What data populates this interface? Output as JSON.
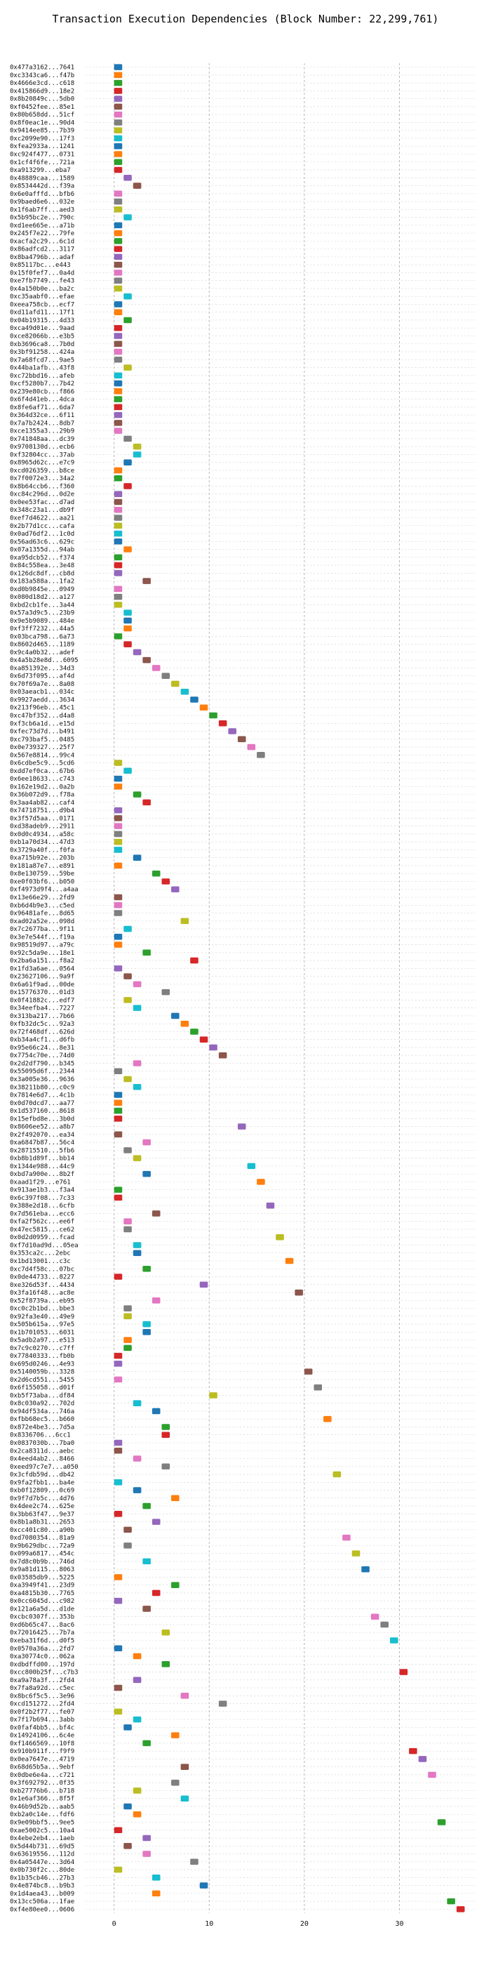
{
  "chart_data": {
    "type": "gantt",
    "title": "Transaction Execution Dependencies (Block Number: 22,299,761)",
    "xlim": [
      -3,
      38
    ],
    "xticks": [
      0,
      10,
      20,
      30
    ],
    "grid": true,
    "colors": [
      "#1f77b4",
      "#ff7f0e",
      "#2ca02c",
      "#d62728",
      "#9467bd",
      "#8c564b",
      "#e377c2",
      "#7f7f7f",
      "#bcbd22",
      "#17becf"
    ],
    "transactions": [
      {
        "label": "0x477a3162...7641",
        "start": 0
      },
      {
        "label": "0xc3343ca6...f47b",
        "start": 0
      },
      {
        "label": "0x4666e3cd...c618",
        "start": 0
      },
      {
        "label": "0x415866d9...18e2",
        "start": 0
      },
      {
        "label": "0x8b20849c...5db0",
        "start": 0
      },
      {
        "label": "0xf0452fee...85e1",
        "start": 0
      },
      {
        "label": "0x80b658dd...51cf",
        "start": 0
      },
      {
        "label": "0x8f0eac1e...90d4",
        "start": 0
      },
      {
        "label": "0x9414ee85...7b39",
        "start": 0
      },
      {
        "label": "0xc2099e90...17f3",
        "start": 0
      },
      {
        "label": "0xfea2933a...1241",
        "start": 0
      },
      {
        "label": "0xc924f477...0731",
        "start": 0
      },
      {
        "label": "0x1cf4f6fe...721a",
        "start": 0
      },
      {
        "label": "0xa913299...eba7",
        "start": 0
      },
      {
        "label": "0x48889caa...1589",
        "start": 1
      },
      {
        "label": "0x8534442d...f39a",
        "start": 2
      },
      {
        "label": "0x6e0afffd...bfb6",
        "start": 0
      },
      {
        "label": "0x9baed6e6...032e",
        "start": 0
      },
      {
        "label": "0x1f6ab7ff...aed3",
        "start": 0
      },
      {
        "label": "0x5b95bc2e...790c",
        "start": 1
      },
      {
        "label": "0xd1ee665e...a71b",
        "start": 0
      },
      {
        "label": "0x245f7e22...79fe",
        "start": 0
      },
      {
        "label": "0xacfa2c29...6c1d",
        "start": 0
      },
      {
        "label": "0x86adfcd2...3117",
        "start": 0
      },
      {
        "label": "0x8ba4796b...adaf",
        "start": 0
      },
      {
        "label": "0x85117bc...e443",
        "start": 0
      },
      {
        "label": "0x15f0fef7...0a4d",
        "start": 0
      },
      {
        "label": "0xe7fb7749...fe43",
        "start": 0
      },
      {
        "label": "0x4a150b0e...ba2c",
        "start": 0
      },
      {
        "label": "0xc35aabf0...efae",
        "start": 1
      },
      {
        "label": "0xeea758cb...ecf7",
        "start": 0
      },
      {
        "label": "0xd11afd11...17f1",
        "start": 0
      },
      {
        "label": "0x04b19315...4d33",
        "start": 1
      },
      {
        "label": "0xca49d01e...9aad",
        "start": 0
      },
      {
        "label": "0xce82066b...e3b5",
        "start": 0
      },
      {
        "label": "0xb3696ca8...7b0d",
        "start": 0
      },
      {
        "label": "0x3bf91258...424a",
        "start": 0
      },
      {
        "label": "0x7a68fcd7...9ae5",
        "start": 0
      },
      {
        "label": "0x44ba1afb...43f8",
        "start": 1
      },
      {
        "label": "0xc72bbd16...afeb",
        "start": 0
      },
      {
        "label": "0xcf5280b7...7b42",
        "start": 0
      },
      {
        "label": "0x239e80cb...f866",
        "start": 0
      },
      {
        "label": "0x6f4d41eb...4dca",
        "start": 0
      },
      {
        "label": "0x8fe6af71...6da7",
        "start": 0
      },
      {
        "label": "0x364d32ce...6f11",
        "start": 0
      },
      {
        "label": "0x7a7b2424...8db7",
        "start": 0
      },
      {
        "label": "0xce1355a3...29b9",
        "start": 0
      },
      {
        "label": "0x741848aa...dc39",
        "start": 1
      },
      {
        "label": "0x9708130d...ecb6",
        "start": 2
      },
      {
        "label": "0xf32804cc...37ab",
        "start": 2
      },
      {
        "label": "0x8965d62c...e7c9",
        "start": 1
      },
      {
        "label": "0xcd026359...b8ce",
        "start": 0
      },
      {
        "label": "0x7f0072e3...34a2",
        "start": 0
      },
      {
        "label": "0x8b64ccb6...f360",
        "start": 1
      },
      {
        "label": "0xc84c296d...0d2e",
        "start": 0
      },
      {
        "label": "0x0ee53fac...d7ad",
        "start": 0
      },
      {
        "label": "0x348c23a1...db9f",
        "start": 0
      },
      {
        "label": "0xef7d4622...aa21",
        "start": 0
      },
      {
        "label": "0x2b77d1cc...cafa",
        "start": 0
      },
      {
        "label": "0x0ad76df2...1c0d",
        "start": 0
      },
      {
        "label": "0x56ad63c6...629c",
        "start": 0
      },
      {
        "label": "0x07a1355d...94ab",
        "start": 1
      },
      {
        "label": "0xa95dcb52...f374",
        "start": 0
      },
      {
        "label": "0x84c558ea...3e48",
        "start": 0
      },
      {
        "label": "0x126dc8df...cb8d",
        "start": 0
      },
      {
        "label": "0x183a588a...1fa2",
        "start": 3
      },
      {
        "label": "0xd0b9845e...0949",
        "start": 0
      },
      {
        "label": "0x080d18d2...a127",
        "start": 0
      },
      {
        "label": "0xbd2cb1fe...3a44",
        "start": 0
      },
      {
        "label": "0x57a3d9c5...23b9",
        "start": 1
      },
      {
        "label": "0x9e5b9089...484e",
        "start": 1
      },
      {
        "label": "0xf3ff7232...44a5",
        "start": 1
      },
      {
        "label": "0x03bca798...6a73",
        "start": 0
      },
      {
        "label": "0x8602d465...1189",
        "start": 1
      },
      {
        "label": "0x9c4a0b32...adef",
        "start": 2
      },
      {
        "label": "0x4a5b28e8d...6095",
        "start": 3
      },
      {
        "label": "0xa851392e...34d3",
        "start": 4
      },
      {
        "label": "0x6d73f095...af4d",
        "start": 5
      },
      {
        "label": "0x70f69a7e...8a08",
        "start": 6
      },
      {
        "label": "0x03aeacb1...034c",
        "start": 7
      },
      {
        "label": "0x9927aedd...3634",
        "start": 8
      },
      {
        "label": "0x213f96eb...45c1",
        "start": 9
      },
      {
        "label": "0xc47bf352...d4a8",
        "start": 10
      },
      {
        "label": "0xf3cb6a1d...e15d",
        "start": 11
      },
      {
        "label": "0xfec73d7d...b491",
        "start": 12
      },
      {
        "label": "0xc793baf5...0485",
        "start": 13
      },
      {
        "label": "0x0e739327...25f7",
        "start": 14
      },
      {
        "label": "0x567e8814...99c4",
        "start": 15
      },
      {
        "label": "0x6cdbe5c9...5cd6",
        "start": 0
      },
      {
        "label": "0xdd7ef0ca...67b6",
        "start": 1
      },
      {
        "label": "0x6ee18633...c743",
        "start": 0
      },
      {
        "label": "0x162e19d2...0a2b",
        "start": 0
      },
      {
        "label": "0x36b072d9...f78a",
        "start": 2
      },
      {
        "label": "0x3aa4ab82...caf4",
        "start": 3
      },
      {
        "label": "0x74718751...d9b4",
        "start": 0
      },
      {
        "label": "0x3f57d5aa...0171",
        "start": 0
      },
      {
        "label": "0xd38adeb9...2911",
        "start": 0
      },
      {
        "label": "0x0d0c4934...a58c",
        "start": 0
      },
      {
        "label": "0xb1a70d34...47d3",
        "start": 0
      },
      {
        "label": "0x3729a40f...f0fa",
        "start": 0
      },
      {
        "label": "0xa715b92e...203b",
        "start": 2
      },
      {
        "label": "0x181a87e7...e891",
        "start": 0
      },
      {
        "label": "0x8e130759...59be",
        "start": 4
      },
      {
        "label": "0xe0f03bf6...b050",
        "start": 5
      },
      {
        "label": "0xf4973d9f4...a4aa",
        "start": 6
      },
      {
        "label": "0x13e66e29...2fd9",
        "start": 0
      },
      {
        "label": "0xb6d4b9e3...c5ed",
        "start": 0
      },
      {
        "label": "0x96481afe...8d65",
        "start": 0
      },
      {
        "label": "0xad02a52e...098d",
        "start": 7
      },
      {
        "label": "0x7c2677ba...9f11",
        "start": 1
      },
      {
        "label": "0x3e7e544f...f19a",
        "start": 0
      },
      {
        "label": "0x98519d97...a79c",
        "start": 0
      },
      {
        "label": "0x92c5da9e...18e1",
        "start": 3
      },
      {
        "label": "0x2ba6a151...f8a2",
        "start": 8
      },
      {
        "label": "0x1fd3a6ae...0564",
        "start": 0
      },
      {
        "label": "0x23627106...9a9f",
        "start": 1
      },
      {
        "label": "0x6a61f9ad...00de",
        "start": 2
      },
      {
        "label": "0x15776370...01d3",
        "start": 5
      },
      {
        "label": "0x0f41882c...edf7",
        "start": 1
      },
      {
        "label": "0x34eefba4...7227",
        "start": 2
      },
      {
        "label": "0x313ba217...7b66",
        "start": 6
      },
      {
        "label": "0xfb32dc5c...92a3",
        "start": 7
      },
      {
        "label": "0x72f468df...626d",
        "start": 8
      },
      {
        "label": "0xb34a4cf1...d6fb",
        "start": 9
      },
      {
        "label": "0x95e66c24...8e31",
        "start": 10
      },
      {
        "label": "0x7754c70e...74d0",
        "start": 11
      },
      {
        "label": "0x2d2df790...b345",
        "start": 2
      },
      {
        "label": "0x55095d6f...2344",
        "start": 0
      },
      {
        "label": "0x3a005e36...9636",
        "start": 1
      },
      {
        "label": "0x38211b80...c0c9",
        "start": 2
      },
      {
        "label": "0x7814e6d7...4c1b",
        "start": 0
      },
      {
        "label": "0x0d70dcd7...aa77",
        "start": 0
      },
      {
        "label": "0x1d537160...8618",
        "start": 0
      },
      {
        "label": "0x15efbd8e...3b0d",
        "start": 0
      },
      {
        "label": "0x8606ee52...a8b7",
        "start": 13
      },
      {
        "label": "0x2f492070...ea34",
        "start": 0
      },
      {
        "label": "0xa6847b87...56c4",
        "start": 3
      },
      {
        "label": "0x28715510...5fb6",
        "start": 1
      },
      {
        "label": "0xb8b1d89f...bb14",
        "start": 2
      },
      {
        "label": "0x1344e988...44c9",
        "start": 14
      },
      {
        "label": "0xbd7a900e...8b2f",
        "start": 3
      },
      {
        "label": "0xaad1f29...e761",
        "start": 15
      },
      {
        "label": "0x913ae1b3...f3a4",
        "start": 0
      },
      {
        "label": "0x6c397f08...7c33",
        "start": 0
      },
      {
        "label": "0x388e2d18...6cfb",
        "start": 16
      },
      {
        "label": "0x7d561eba...ecc6",
        "start": 4
      },
      {
        "label": "0xfa2f562c...ee6f",
        "start": 1
      },
      {
        "label": "0x47ec5815...ce62",
        "start": 1
      },
      {
        "label": "0x0d2d0959...fcad",
        "start": 17
      },
      {
        "label": "0xf7d10ad9d...05ea",
        "start": 2
      },
      {
        "label": "0x353ca2c...2ebc",
        "start": 2
      },
      {
        "label": "0x1bd13001...c3c",
        "start": 18
      },
      {
        "label": "0xc7d4f58c...07bc",
        "start": 3
      },
      {
        "label": "0x0de44733...8227",
        "start": 0
      },
      {
        "label": "0xe326d53f...4434",
        "start": 9
      },
      {
        "label": "0x3fa16f48...ac8e",
        "start": 19
      },
      {
        "label": "0x52f8739a...eb95",
        "start": 4
      },
      {
        "label": "0xc0c2b1bd...bbe3",
        "start": 1
      },
      {
        "label": "0x92fa3e40...49e9",
        "start": 1
      },
      {
        "label": "0x505b615a...97e5",
        "start": 3
      },
      {
        "label": "0x1b701053...6031",
        "start": 3
      },
      {
        "label": "0x5adb2a97...e513",
        "start": 1
      },
      {
        "label": "0x7c9c0270...c7ff",
        "start": 1
      },
      {
        "label": "0x77840333...fb0b",
        "start": 0
      },
      {
        "label": "0x695d0246...4e93",
        "start": 0
      },
      {
        "label": "0x5140059b...3328",
        "start": 20
      },
      {
        "label": "0x2d6cd551...5455",
        "start": 0
      },
      {
        "label": "0x6f155058...d01f",
        "start": 21
      },
      {
        "label": "0xb5f73aba...df84",
        "start": 10
      },
      {
        "label": "0x8c030a92...702d",
        "start": 2
      },
      {
        "label": "0x94df534a...746a",
        "start": 4
      },
      {
        "label": "0xfbb68ec5...b660",
        "start": 22
      },
      {
        "label": "0x872e4be3...7d5a",
        "start": 5
      },
      {
        "label": "0x8336706...6cc1",
        "start": 5
      },
      {
        "label": "0x0837030b...7ba0",
        "start": 0
      },
      {
        "label": "0x2ca8311d...aebc",
        "start": 0
      },
      {
        "label": "0x4eed4ab2...8466",
        "start": 2
      },
      {
        "label": "0xeed97c7e7...a050",
        "start": 5
      },
      {
        "label": "0x3cfdb59d...db42",
        "start": 23
      },
      {
        "label": "0x9fa2fbb1...ba4e",
        "start": 0
      },
      {
        "label": "0xb0f12809...0c69",
        "start": 2
      },
      {
        "label": "0x9f7d7b5c...4d76",
        "start": 6
      },
      {
        "label": "0x4dee2c74...625e",
        "start": 3
      },
      {
        "label": "0x3bb63f47...9e37",
        "start": 0
      },
      {
        "label": "0x8b1a8b31...2653",
        "start": 4
      },
      {
        "label": "0xcc401c80...a90b",
        "start": 1
      },
      {
        "label": "0xd7080354...81a9",
        "start": 24
      },
      {
        "label": "0x9b629dbc...72a9",
        "start": 1
      },
      {
        "label": "0x099a6817...454c",
        "start": 25
      },
      {
        "label": "0x7d8c0b9b...746d",
        "start": 3
      },
      {
        "label": "0x9a81d115...8063",
        "start": 26
      },
      {
        "label": "0x03585db9...5225",
        "start": 0
      },
      {
        "label": "0xa3949f41...23d9",
        "start": 6
      },
      {
        "label": "0xa4815b30...7765",
        "start": 4
      },
      {
        "label": "0x0cc6045d...c982",
        "start": 0
      },
      {
        "label": "0x121a6a5d...d1de",
        "start": 3
      },
      {
        "label": "0xcbc0307f...353b",
        "start": 27
      },
      {
        "label": "0xd6b65c47...8ac6",
        "start": 28
      },
      {
        "label": "0x72016425...7b7a",
        "start": 5
      },
      {
        "label": "0xeba31f6d...d0f5",
        "start": 29
      },
      {
        "label": "0x0570a36a...2fd7",
        "start": 0
      },
      {
        "label": "0xa30774c0...062a",
        "start": 2
      },
      {
        "label": "0xdbdffd00...197d",
        "start": 5
      },
      {
        "label": "0xcc800b25f...c7b3",
        "start": 30
      },
      {
        "label": "0xa9a78a3f...2fd4",
        "start": 2
      },
      {
        "label": "0x7fa8a92d...c5ec",
        "start": 0
      },
      {
        "label": "0x8bc6f5c5...3e96",
        "start": 7
      },
      {
        "label": "0xcd151272...2fd4",
        "start": 11
      },
      {
        "label": "0x0f2b2f77...fe07",
        "start": 0
      },
      {
        "label": "0x7f17b694...3abb",
        "start": 2
      },
      {
        "label": "0x0faf4bb5...bf4c",
        "start": 1
      },
      {
        "label": "0x14924106...6c4e",
        "start": 6
      },
      {
        "label": "0xf1466569...10f8",
        "start": 3
      },
      {
        "label": "0x910b911f...f9f9",
        "start": 31
      },
      {
        "label": "0x0ea7647e...4719",
        "start": 32
      },
      {
        "label": "0x68d65b5a...9ebf",
        "start": 7
      },
      {
        "label": "0x0dbe6e4a...c721",
        "start": 33
      },
      {
        "label": "0x3f692792...0f35",
        "start": 6
      },
      {
        "label": "0xb27776b6...b718",
        "start": 2
      },
      {
        "label": "0x1e6af366...8f5f",
        "start": 7
      },
      {
        "label": "0x46b9d52b...aab5",
        "start": 1
      },
      {
        "label": "0xb2a0c14e...fdf6",
        "start": 2
      },
      {
        "label": "0x9e09bbf5...9ee5",
        "start": 34
      },
      {
        "label": "0xae5002c5...10a4",
        "start": 0
      },
      {
        "label": "0x4ebe2eb4...1aeb",
        "start": 3
      },
      {
        "label": "0x5d44b731...69d5",
        "start": 1
      },
      {
        "label": "0x63619556...112d",
        "start": 3
      },
      {
        "label": "0x4a05447e...3d64",
        "start": 8
      },
      {
        "label": "0x0b730f2c...80de",
        "start": 0
      },
      {
        "label": "0x1b35cb46...27b3",
        "start": 4
      },
      {
        "label": "0x4e874bc8...b9b3",
        "start": 9
      },
      {
        "label": "0x1d4aea43...b009",
        "start": 4
      },
      {
        "label": "0x13cc506a...1fae",
        "start": 35
      },
      {
        "label": "0xf4e80ee0...0606",
        "start": 36
      }
    ]
  }
}
